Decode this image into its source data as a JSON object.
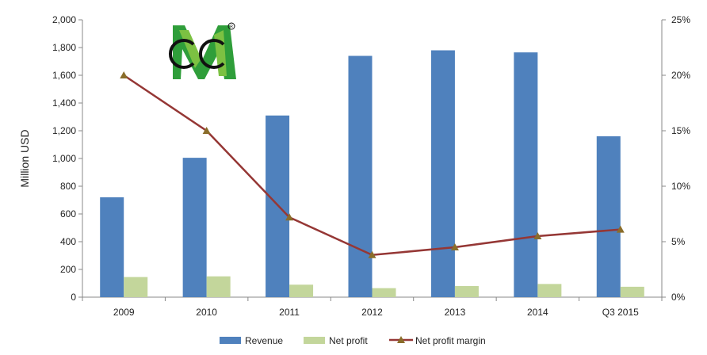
{
  "chart_data": {
    "type": "bar",
    "categories": [
      "2009",
      "2010",
      "2011",
      "2012",
      "2013",
      "2014",
      "Q3 2015"
    ],
    "series": [
      {
        "name": "Revenue",
        "type": "bar",
        "axis": "left",
        "color": "#4f81bd",
        "values": [
          720,
          1005,
          1310,
          1740,
          1780,
          1765,
          1160
        ]
      },
      {
        "name": "Net profit",
        "type": "bar",
        "axis": "left",
        "color": "#c3d69b",
        "values": [
          145,
          150,
          90,
          65,
          80,
          95,
          75
        ]
      },
      {
        "name": "Net profit margin",
        "type": "line",
        "axis": "right",
        "color": "#953735",
        "marker_color": "#8a6d2a",
        "values": [
          20.0,
          15.0,
          7.2,
          3.8,
          4.5,
          5.5,
          6.1
        ]
      }
    ],
    "ylabel": "Million USD",
    "ylim": [
      0,
      2000
    ],
    "yticks": [
      "0",
      "200",
      "400",
      "600",
      "800",
      "1,000",
      "1,200",
      "1,400",
      "1,600",
      "1,800",
      "2,000"
    ],
    "y2lim": [
      0,
      25
    ],
    "y2ticks": [
      "0%",
      "5%",
      "10%",
      "15%",
      "20%",
      "25%"
    ],
    "grid": false,
    "legend": "bottom"
  },
  "logo": {
    "name": "gm-logo",
    "text": "GM",
    "registered": "®"
  }
}
